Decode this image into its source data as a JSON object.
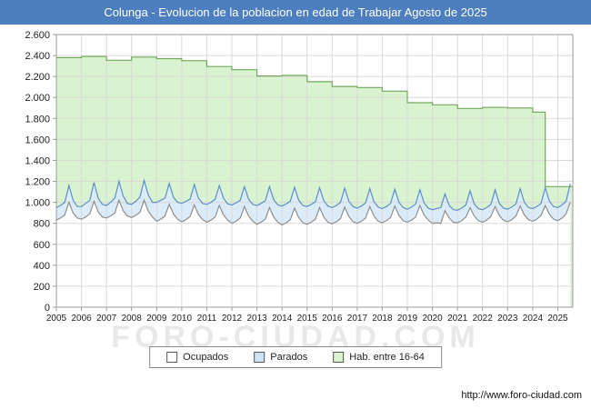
{
  "title_bar": {
    "text": "Colunga - Evolucion de la poblacion en edad de Trabajar Agosto de 2025",
    "bg": "#4d7ebf",
    "fg": "#ffffff"
  },
  "watermark": "FORO-CIUDAD.COM",
  "footer": {
    "url": "http://www.foro-ciudad.com"
  },
  "legend": {
    "items": [
      {
        "label": "Ocupados",
        "swatch": "#ffffff"
      },
      {
        "label": "Parados",
        "swatch": "#cfe2f5"
      },
      {
        "label": "Hab. entre 16-64",
        "swatch": "#d9f2d0"
      }
    ]
  },
  "chart_data": {
    "type": "area",
    "title": "Colunga - Evolucion de la poblacion en edad de Trabajar Agosto de 2025",
    "xlabel": "",
    "ylabel": "",
    "ylim": [
      0,
      2600
    ],
    "y_tick_step": 200,
    "x_range": [
      2005,
      2025.6
    ],
    "x_ticks": [
      2005,
      2006,
      2007,
      2008,
      2009,
      2010,
      2011,
      2012,
      2013,
      2014,
      2015,
      2016,
      2017,
      2018,
      2019,
      2020,
      2021,
      2022,
      2023,
      2024,
      2025
    ],
    "grid": true,
    "legend_position": "bottom",
    "series": [
      {
        "name": "Hab. entre 16-64",
        "render": "step",
        "line_color": "#74a85c",
        "fill_color": "#d9f2d0",
        "x": [
          2005,
          2006,
          2007,
          2008,
          2009,
          2010,
          2011,
          2012,
          2013,
          2014,
          2015,
          2016,
          2017,
          2018,
          2019,
          2020,
          2021,
          2022,
          2023,
          2024,
          2024.5,
          2025.6
        ],
        "values": [
          2380,
          2390,
          2355,
          2385,
          2370,
          2350,
          2295,
          2265,
          2205,
          2210,
          2150,
          2105,
          2095,
          2060,
          1950,
          1930,
          1895,
          1905,
          1900,
          1860,
          1150,
          1150
        ]
      },
      {
        "name": "Parados",
        "note": "area stacked on Ocupados; line = Ocupados + Parados",
        "render": "line",
        "line_color": "#5c8fc9",
        "fill_color": "#dcebf8",
        "x_start": 2005,
        "x_step": 0.166667,
        "values": [
          950,
          970,
          1000,
          1160,
          1020,
          960,
          960,
          990,
          1020,
          1190,
          1040,
          980,
          970,
          1000,
          1040,
          1200,
          1060,
          990,
          980,
          1010,
          1050,
          1210,
          1070,
          1000,
          1000,
          1020,
          1040,
          1180,
          1050,
          1000,
          990,
          1010,
          1030,
          1170,
          1040,
          990,
          980,
          1000,
          1030,
          1160,
          1040,
          985,
          975,
          995,
          1020,
          1150,
          1030,
          980,
          970,
          990,
          1015,
          1150,
          1025,
          975,
          965,
          985,
          1010,
          1145,
          1020,
          970,
          960,
          980,
          1005,
          1140,
          1015,
          965,
          950,
          970,
          1000,
          1135,
          1010,
          960,
          945,
          965,
          995,
          1130,
          1005,
          955,
          940,
          960,
          990,
          1125,
          1000,
          950,
          935,
          955,
          985,
          1120,
          995,
          945,
          930,
          940,
          950,
          1080,
          970,
          930,
          925,
          945,
          975,
          1110,
          985,
          940,
          930,
          950,
          980,
          1120,
          990,
          945,
          935,
          955,
          985,
          1130,
          1000,
          950,
          940,
          960,
          990,
          1140,
          1010,
          960,
          950,
          975,
          1010,
          1175
        ]
      },
      {
        "name": "Ocupados",
        "render": "line",
        "line_color": "#8f8f8f",
        "fill_color": "#ffffff",
        "x_start": 2005,
        "x_step": 0.166667,
        "values": [
          830,
          850,
          880,
          1000,
          900,
          850,
          840,
          860,
          890,
          1010,
          910,
          860,
          850,
          870,
          900,
          1020,
          920,
          870,
          855,
          875,
          905,
          1020,
          915,
          860,
          820,
          840,
          870,
          980,
          890,
          840,
          815,
          835,
          865,
          975,
          885,
          835,
          810,
          830,
          860,
          970,
          880,
          830,
          800,
          820,
          850,
          960,
          870,
          820,
          790,
          810,
          840,
          950,
          860,
          810,
          785,
          805,
          835,
          945,
          855,
          805,
          790,
          810,
          840,
          950,
          860,
          810,
          795,
          815,
          845,
          955,
          865,
          815,
          800,
          820,
          850,
          960,
          870,
          820,
          805,
          825,
          855,
          965,
          875,
          825,
          810,
          830,
          860,
          970,
          880,
          830,
          800,
          805,
          800,
          920,
          850,
          810,
          805,
          825,
          860,
          950,
          870,
          825,
          810,
          830,
          865,
          960,
          875,
          830,
          815,
          835,
          870,
          965,
          880,
          835,
          820,
          840,
          875,
          970,
          885,
          840,
          825,
          850,
          890,
          1000
        ]
      }
    ]
  }
}
